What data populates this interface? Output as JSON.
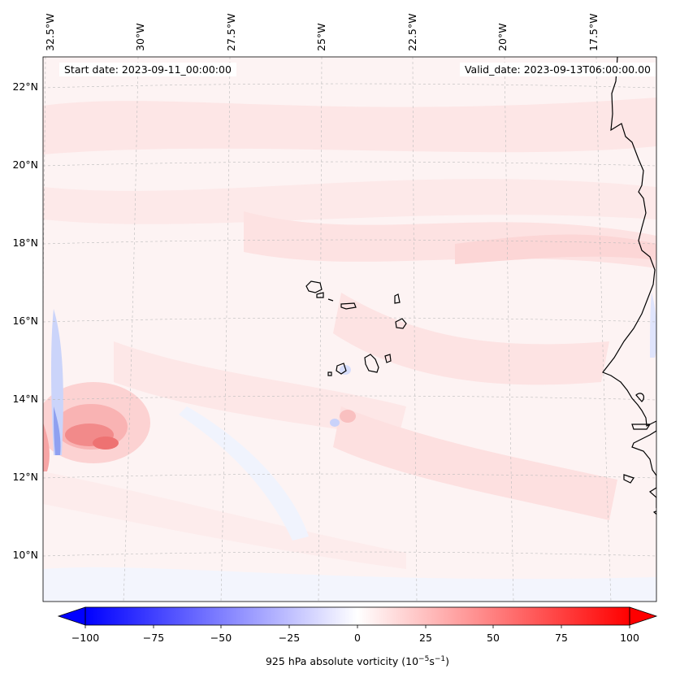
{
  "header": {
    "start_date": "Start date: 2023-09-11_00:00:00",
    "valid_date": "Valid_date: 2023-09-13T06:00:00.00"
  },
  "map": {
    "lon_labels": [
      "32.5°W",
      "30°W",
      "27.5°W",
      "25°W",
      "22.5°W",
      "20°W",
      "17.5°W"
    ],
    "lat_labels": [
      "22°N",
      "20°N",
      "18°N",
      "16°N",
      "14°N",
      "12°N",
      "10°N"
    ],
    "field_colors": {
      "pale_pink": "#fdf2f2",
      "light_pink": "#fde0e0",
      "pink": "#fbc8c8",
      "red": "#ef6a6a",
      "pale_blue": "#eef1fd",
      "blue": "#c9d2fa"
    }
  },
  "colorbar": {
    "ticks": [
      "−100",
      "−75",
      "−50",
      "−25",
      "0",
      "25",
      "50",
      "75",
      "100"
    ],
    "label_main": "925 hPa absolute vorticity (10",
    "label_exp1": "−5",
    "label_mid": "s",
    "label_exp2": "−1",
    "label_end": ")",
    "min_color": "#0000ff",
    "mid_color": "#ffffff",
    "max_color": "#ff0000"
  }
}
